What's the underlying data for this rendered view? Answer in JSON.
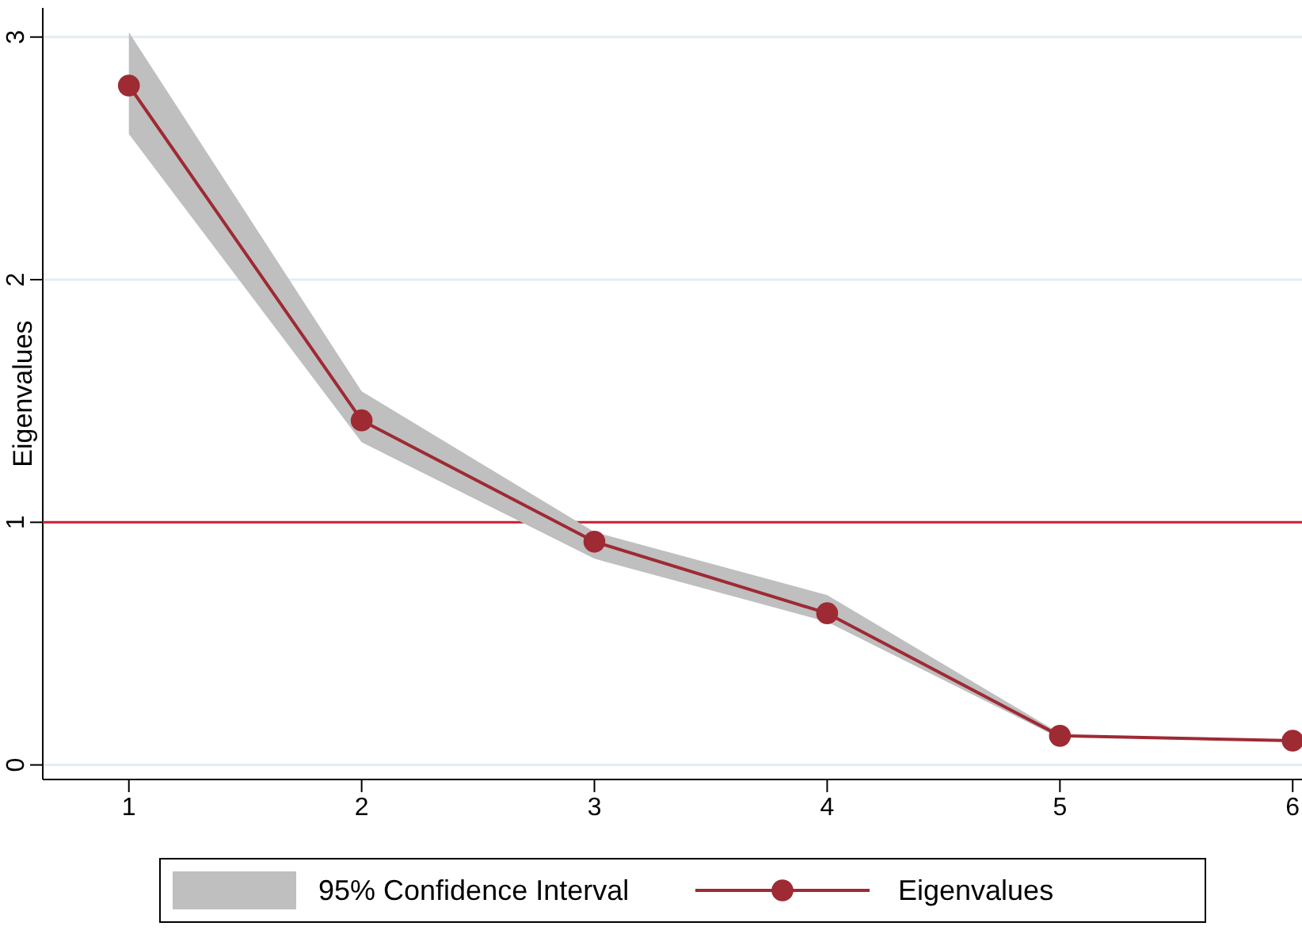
{
  "chart_data": {
    "type": "line",
    "ylabel": "Eigenvalues",
    "x": [
      1,
      2,
      3,
      4,
      5,
      6
    ],
    "series": [
      {
        "name": "95% Confidence Interval",
        "type": "area",
        "color": "#bfbfbf",
        "values": [
          null,
          null,
          null,
          null,
          null,
          null
        ],
        "lower": [
          2.6,
          1.33,
          0.85,
          0.59,
          0.11,
          null
        ],
        "upper": [
          3.02,
          1.54,
          0.96,
          0.7,
          0.13,
          null
        ]
      },
      {
        "name": "Eigenvalues",
        "color": "#9e2a33",
        "values": [
          2.8,
          1.42,
          0.92,
          0.625,
          0.12,
          0.1
        ]
      }
    ],
    "xlim": [
      0.63,
      6.04
    ],
    "xticks": [
      1,
      2,
      3,
      4,
      5,
      6
    ],
    "ylim": [
      -0.06,
      3.12
    ],
    "yticks": [
      0,
      1,
      2,
      3
    ],
    "ref_lines": [
      {
        "axis": "y",
        "value": 1,
        "color": "#c8202f"
      }
    ],
    "grid": "y",
    "legend": "bottom",
    "marker": "circle",
    "line_style": "solid"
  }
}
